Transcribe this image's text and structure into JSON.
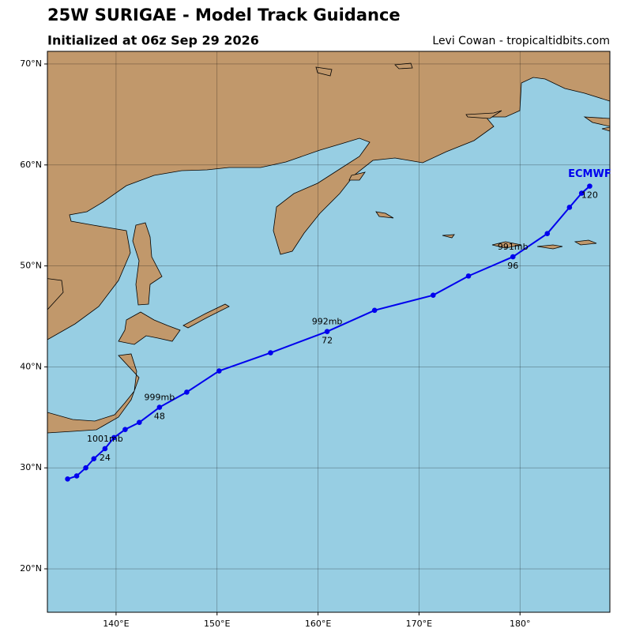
{
  "header": {
    "title": "25W SURIGAE - Model Track Guidance",
    "subtitle": "Initialized at 06z Sep 29 2026",
    "credit": "Levi Cowan - tropicaltidbits.com"
  },
  "map": {
    "lonlim": [
      133.2,
      188.9
    ],
    "latlim": [
      15.7,
      71.25
    ],
    "lonticks": [
      {
        "value": 140,
        "label": "140°E"
      },
      {
        "value": 150,
        "label": "150°E"
      },
      {
        "value": 160,
        "label": "160°E"
      },
      {
        "value": 170,
        "label": "170°E"
      },
      {
        "value": 180,
        "label": "180°"
      }
    ],
    "latticks": [
      {
        "value": 20,
        "label": "20°N"
      },
      {
        "value": 30,
        "label": "30°N"
      },
      {
        "value": 40,
        "label": "40°N"
      },
      {
        "value": 50,
        "label": "50°N"
      },
      {
        "value": 60,
        "label": "60°N"
      },
      {
        "value": 70,
        "label": "70°N"
      }
    ],
    "grid": true,
    "ocean_color": "#97cee3"
  },
  "track": {
    "model": "ECMWF",
    "color": "#0000ee",
    "hours": [
      0,
      6,
      12,
      18,
      24,
      30,
      36,
      42,
      48,
      54,
      60,
      66,
      72,
      78,
      84,
      90,
      96,
      102,
      108,
      114,
      120
    ],
    "lon": [
      135.2,
      136.1,
      137.0,
      137.8,
      138.9,
      139.8,
      140.9,
      142.3,
      144.3,
      147.0,
      150.2,
      155.3,
      160.9,
      165.6,
      171.4,
      174.9,
      179.3,
      182.7,
      184.9,
      186.1,
      186.9
    ],
    "lat": [
      28.9,
      29.2,
      30.0,
      30.9,
      31.9,
      33.0,
      33.8,
      34.5,
      36.0,
      37.5,
      39.6,
      41.4,
      43.5,
      45.6,
      47.1,
      49.0,
      50.9,
      53.2,
      55.8,
      57.2,
      57.9
    ],
    "annotations": [
      {
        "hour": 24,
        "pressure": "1001mb"
      },
      {
        "hour": 48,
        "pressure": "999mb"
      },
      {
        "hour": 72,
        "pressure": "992mb"
      },
      {
        "hour": 96,
        "pressure": "991mb"
      },
      {
        "hour": 120
      }
    ]
  }
}
